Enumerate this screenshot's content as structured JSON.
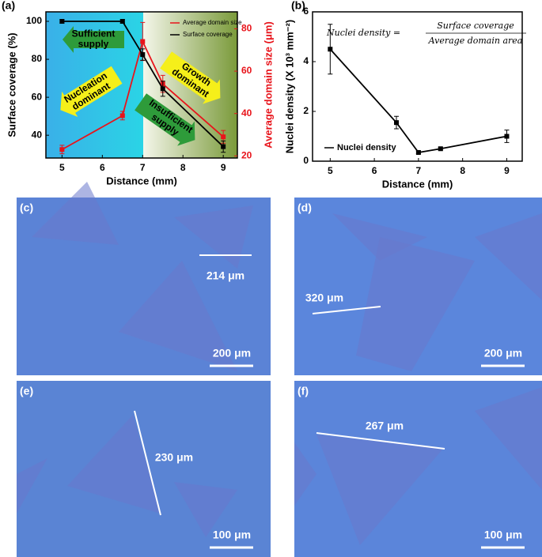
{
  "chart_data": [
    {
      "type": "line",
      "panel_label": "(a)",
      "x_label": "Distance (mm)",
      "y_label": "Surface coverage (%)",
      "y2_label": "Average domain size (μm)",
      "x": [
        5,
        6.5,
        7,
        7.5,
        9
      ],
      "series": [
        {
          "name": "Average domain size",
          "color": "#e8141b",
          "axis": "y2",
          "values": [
            23,
            39,
            74,
            54,
            29
          ],
          "errors": [
            2,
            2,
            9,
            4,
            3
          ]
        },
        {
          "name": "Surface coverage",
          "color": "#000000",
          "values": [
            100,
            100,
            82.5,
            64.5,
            34
          ],
          "errors": [
            1,
            1,
            3,
            4,
            3
          ]
        }
      ],
      "xlim": [
        4.6,
        9.35
      ],
      "xticks": [
        5,
        6,
        7,
        8,
        9
      ],
      "ylim": [
        28,
        105
      ],
      "yticks": [
        40,
        60,
        80,
        100
      ],
      "y2lim": [
        19,
        88
      ],
      "y2ticks": [
        20,
        40,
        60,
        80
      ],
      "legend": "upper right",
      "annotations": [
        {
          "lines": [
            "Sufficient",
            "supply"
          ]
        },
        {
          "lines": [
            "Nucleation",
            "dominant"
          ]
        },
        {
          "lines": [
            "Growth",
            "dominant"
          ]
        },
        {
          "lines": [
            "Insufficient",
            "supply"
          ]
        }
      ]
    },
    {
      "type": "line",
      "panel_label": "(b)",
      "x_label": "Distance (mm)",
      "y_label": "Nuclei density (X 10³ mm⁻²)",
      "x": [
        5,
        6.5,
        7,
        7.5,
        9
      ],
      "series": [
        {
          "name": "Nuclei density",
          "color": "#000000",
          "values": [
            4.5,
            1.55,
            0.35,
            0.5,
            1.0
          ],
          "errors": [
            1.0,
            0.25,
            0.05,
            0.05,
            0.25
          ]
        }
      ],
      "xlim": [
        4.6,
        9.35
      ],
      "xticks": [
        5,
        6,
        7,
        8,
        9
      ],
      "ylim": [
        0,
        6
      ],
      "yticks": [
        0,
        2,
        4,
        6
      ],
      "legend": "lower left",
      "formula": {
        "lhs": "Nuclei density =",
        "numerator": "Surface coverage",
        "denominator": "Average domain area"
      }
    }
  ],
  "images": [
    {
      "label": "(c)",
      "measure": "214 μm",
      "scale": "200 μm"
    },
    {
      "label": "(d)",
      "measure": "320 μm",
      "scale": "200 μm"
    },
    {
      "label": "(e)",
      "measure": "230 μm",
      "scale": "100 μm"
    },
    {
      "label": "(f)",
      "measure": "267 μm",
      "scale": "100 μm"
    }
  ]
}
